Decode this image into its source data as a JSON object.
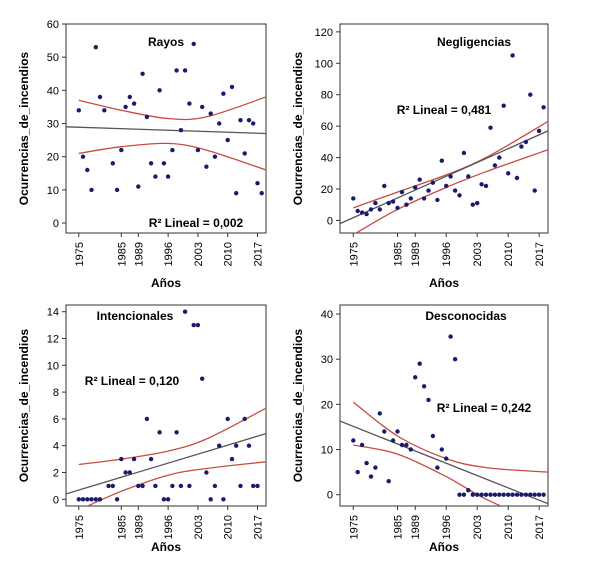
{
  "chart_data": [
    {
      "type": "scatter",
      "title": "Rayos",
      "xlabel": "Años",
      "ylabel": "Ocurrencias_de_incendios",
      "x_ticks": [
        "1975",
        "1985",
        "1989",
        "1996",
        "2003",
        "2010",
        "2017"
      ],
      "y_ticks": [
        "0",
        "10",
        "20",
        "30",
        "40",
        "50",
        "60"
      ],
      "xlim": [
        1972,
        2019
      ],
      "ylim": [
        -3,
        60
      ],
      "r2_label": "R² Lineal = 0,002",
      "grid": false,
      "points": [
        [
          1975,
          34
        ],
        [
          1976,
          20
        ],
        [
          1977,
          16
        ],
        [
          1978,
          10
        ],
        [
          1979,
          53
        ],
        [
          1980,
          38
        ],
        [
          1981,
          34
        ],
        [
          1983,
          18
        ],
        [
          1984,
          10
        ],
        [
          1985,
          22
        ],
        [
          1986,
          35
        ],
        [
          1987,
          38
        ],
        [
          1988,
          36
        ],
        [
          1989,
          11
        ],
        [
          1990,
          45
        ],
        [
          1991,
          32
        ],
        [
          1992,
          18
        ],
        [
          1993,
          14
        ],
        [
          1994,
          40
        ],
        [
          1995,
          18
        ],
        [
          1996,
          14
        ],
        [
          1997,
          22
        ],
        [
          1998,
          46
        ],
        [
          1999,
          28
        ],
        [
          2000,
          46
        ],
        [
          2001,
          36
        ],
        [
          2002,
          54
        ],
        [
          2003,
          22
        ],
        [
          2004,
          35
        ],
        [
          2005,
          17
        ],
        [
          2006,
          33
        ],
        [
          2007,
          20
        ],
        [
          2008,
          30
        ],
        [
          2009,
          39
        ],
        [
          2010,
          25
        ],
        [
          2011,
          41
        ],
        [
          2012,
          9
        ],
        [
          2013,
          31
        ],
        [
          2014,
          21
        ],
        [
          2015,
          31
        ],
        [
          2016,
          30
        ],
        [
          2017,
          12
        ],
        [
          2018,
          9
        ]
      ],
      "fit_line": [
        [
          1972,
          29
        ],
        [
          2019,
          27
        ]
      ],
      "ci_upper": [
        [
          1975,
          37
        ],
        [
          1985,
          34
        ],
        [
          1996,
          31.5
        ],
        [
          2005,
          32
        ],
        [
          2019,
          38
        ]
      ],
      "ci_lower": [
        [
          1975,
          21
        ],
        [
          1985,
          23
        ],
        [
          1996,
          24
        ],
        [
          2005,
          22
        ],
        [
          2019,
          16
        ]
      ]
    },
    {
      "type": "scatter",
      "title": "Negligencias",
      "xlabel": "Años",
      "ylabel": "Ocurrencias_de_incendios",
      "x_ticks": [
        "1975",
        "1985",
        "1989",
        "1996",
        "2003",
        "2010",
        "2017"
      ],
      "y_ticks": [
        "0",
        "20",
        "40",
        "60",
        "80",
        "100",
        "120"
      ],
      "xlim": [
        1972,
        2019
      ],
      "ylim": [
        -8,
        125
      ],
      "r2_label": "R² Lineal = 0,481",
      "grid": false,
      "points": [
        [
          1975,
          14
        ],
        [
          1976,
          6
        ],
        [
          1977,
          5
        ],
        [
          1978,
          4
        ],
        [
          1979,
          7
        ],
        [
          1980,
          11
        ],
        [
          1981,
          7
        ],
        [
          1982,
          22
        ],
        [
          1983,
          11
        ],
        [
          1984,
          12
        ],
        [
          1985,
          8
        ],
        [
          1986,
          18
        ],
        [
          1987,
          10
        ],
        [
          1988,
          14
        ],
        [
          1989,
          21
        ],
        [
          1990,
          26
        ],
        [
          1991,
          14
        ],
        [
          1992,
          19
        ],
        [
          1993,
          24
        ],
        [
          1994,
          13
        ],
        [
          1995,
          38
        ],
        [
          1996,
          22
        ],
        [
          1997,
          28
        ],
        [
          1998,
          19
        ],
        [
          1999,
          16
        ],
        [
          2000,
          43
        ],
        [
          2001,
          28
        ],
        [
          2002,
          10
        ],
        [
          2003,
          11
        ],
        [
          2004,
          23
        ],
        [
          2005,
          22
        ],
        [
          2006,
          59
        ],
        [
          2007,
          35
        ],
        [
          2008,
          40
        ],
        [
          2009,
          73
        ],
        [
          2010,
          30
        ],
        [
          2011,
          105
        ],
        [
          2012,
          27
        ],
        [
          2013,
          47
        ],
        [
          2014,
          50
        ],
        [
          2015,
          80
        ],
        [
          2016,
          19
        ],
        [
          2017,
          57
        ],
        [
          2018,
          72
        ]
      ],
      "fit_line": [
        [
          1972,
          -2
        ],
        [
          2019,
          57
        ]
      ],
      "ci_upper": [
        [
          1975,
          8
        ],
        [
          1985,
          18
        ],
        [
          1996,
          29
        ],
        [
          2005,
          40
        ],
        [
          2019,
          63
        ]
      ],
      "ci_lower": [
        [
          1975,
          -9
        ],
        [
          1985,
          7
        ],
        [
          1996,
          21
        ],
        [
          2005,
          31
        ],
        [
          2019,
          45
        ]
      ]
    },
    {
      "type": "scatter",
      "title": "Intencionales",
      "xlabel": "Años",
      "ylabel": "Ocurrencias_de_incendios",
      "x_ticks": [
        "1975",
        "1985",
        "1989",
        "1996",
        "2003",
        "2010",
        "2017"
      ],
      "y_ticks": [
        "0",
        "2",
        "4",
        "6",
        "8",
        "10",
        "12",
        "14"
      ],
      "xlim": [
        1972,
        2019
      ],
      "ylim": [
        -0.5,
        14.5
      ],
      "r2_label": "R² Lineal = 0,120",
      "grid": false,
      "points": [
        [
          1975,
          0
        ],
        [
          1976,
          0
        ],
        [
          1977,
          0
        ],
        [
          1978,
          0
        ],
        [
          1979,
          0
        ],
        [
          1980,
          0
        ],
        [
          1982,
          1
        ],
        [
          1983,
          1
        ],
        [
          1984,
          0
        ],
        [
          1985,
          3
        ],
        [
          1986,
          2
        ],
        [
          1987,
          2
        ],
        [
          1988,
          3
        ],
        [
          1989,
          1
        ],
        [
          1990,
          1
        ],
        [
          1991,
          6
        ],
        [
          1992,
          3
        ],
        [
          1993,
          1
        ],
        [
          1994,
          5
        ],
        [
          1995,
          0
        ],
        [
          1996,
          0
        ],
        [
          1997,
          1
        ],
        [
          1998,
          5
        ],
        [
          1999,
          1
        ],
        [
          2000,
          14
        ],
        [
          2001,
          1
        ],
        [
          2002,
          13
        ],
        [
          2003,
          13
        ],
        [
          2004,
          9
        ],
        [
          2005,
          2
        ],
        [
          2006,
          0
        ],
        [
          2007,
          1
        ],
        [
          2008,
          4
        ],
        [
          2009,
          0
        ],
        [
          2010,
          6
        ],
        [
          2011,
          3
        ],
        [
          2012,
          4
        ],
        [
          2013,
          1
        ],
        [
          2014,
          6
        ],
        [
          2015,
          4
        ],
        [
          2016,
          1
        ],
        [
          2017,
          1
        ]
      ],
      "fit_line": [
        [
          1972,
          0.4
        ],
        [
          2019,
          4.9
        ]
      ],
      "ci_upper": [
        [
          1975,
          2.6
        ],
        [
          1985,
          3.0
        ],
        [
          1996,
          3.6
        ],
        [
          2005,
          4.5
        ],
        [
          2019,
          6.8
        ]
      ],
      "ci_lower": [
        [
          1975,
          -0.8
        ],
        [
          1985,
          0.6
        ],
        [
          1996,
          1.8
        ],
        [
          2005,
          2.3
        ],
        [
          2019,
          2.8
        ]
      ]
    },
    {
      "type": "scatter",
      "title": "Desconocidas",
      "xlabel": "Años",
      "ylabel": "Ocurrencias_de_incendios",
      "x_ticks": [
        "1975",
        "1985",
        "1989",
        "1996",
        "2003",
        "2010",
        "2017"
      ],
      "y_ticks": [
        "0",
        "10",
        "20",
        "30",
        "40"
      ],
      "xlim": [
        1972,
        2019
      ],
      "ylim": [
        -2.5,
        42
      ],
      "r2_label": "R² Lineal = 0,242",
      "grid": false,
      "points": [
        [
          1975,
          12
        ],
        [
          1976,
          5
        ],
        [
          1977,
          11
        ],
        [
          1978,
          7
        ],
        [
          1979,
          4
        ],
        [
          1980,
          6
        ],
        [
          1981,
          18
        ],
        [
          1982,
          14
        ],
        [
          1983,
          3
        ],
        [
          1984,
          12
        ],
        [
          1985,
          14
        ],
        [
          1986,
          11
        ],
        [
          1987,
          11
        ],
        [
          1988,
          10
        ],
        [
          1989,
          26
        ],
        [
          1990,
          29
        ],
        [
          1991,
          24
        ],
        [
          1992,
          21
        ],
        [
          1993,
          13
        ],
        [
          1994,
          6
        ],
        [
          1995,
          10
        ],
        [
          1996,
          8
        ],
        [
          1997,
          35
        ],
        [
          1998,
          30
        ],
        [
          1999,
          0
        ],
        [
          2000,
          0
        ],
        [
          2001,
          1
        ],
        [
          2002,
          0
        ],
        [
          2003,
          0
        ],
        [
          2004,
          0
        ],
        [
          2005,
          0
        ],
        [
          2006,
          0
        ],
        [
          2007,
          0
        ],
        [
          2008,
          0
        ],
        [
          2009,
          0
        ],
        [
          2010,
          0
        ],
        [
          2011,
          0
        ],
        [
          2012,
          0
        ],
        [
          2013,
          0
        ],
        [
          2014,
          0
        ],
        [
          2015,
          0
        ],
        [
          2016,
          0
        ],
        [
          2017,
          0
        ],
        [
          2018,
          0
        ]
      ],
      "fit_line": [
        [
          1972,
          16.3
        ],
        [
          2019,
          -2
        ]
      ],
      "ci_upper": [
        [
          1975,
          20.5
        ],
        [
          1985,
          13
        ],
        [
          1996,
          8
        ],
        [
          2005,
          6
        ],
        [
          2019,
          5
        ]
      ],
      "ci_lower": [
        [
          1975,
          11
        ],
        [
          1985,
          9
        ],
        [
          1996,
          4
        ],
        [
          2005,
          -1
        ],
        [
          2019,
          -7
        ]
      ]
    }
  ]
}
